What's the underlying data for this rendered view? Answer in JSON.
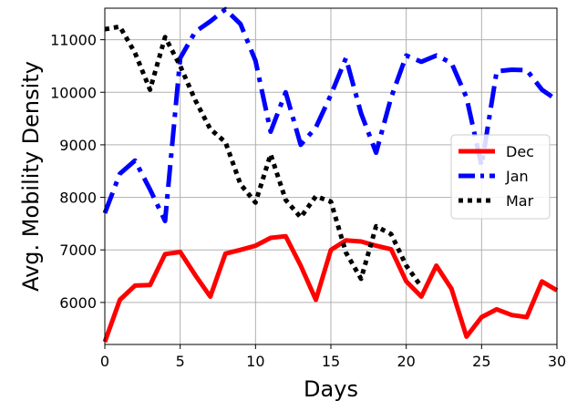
{
  "chart_data": {
    "type": "line",
    "xlabel": "Days",
    "ylabel": "Avg. Mobility Density",
    "xlim": [
      0,
      30
    ],
    "ylim": [
      5200,
      11600
    ],
    "xticks": [
      0,
      5,
      10,
      15,
      20,
      25,
      30
    ],
    "yticks": [
      6000,
      7000,
      8000,
      9000,
      10000,
      11000
    ],
    "grid": true,
    "legend_position": "center-right",
    "x": [
      0,
      1,
      2,
      3,
      4,
      5,
      6,
      7,
      8,
      9,
      10,
      11,
      12,
      13,
      14,
      15,
      16,
      17,
      18,
      19,
      20,
      21,
      22,
      23,
      24,
      25,
      26,
      27,
      28,
      29,
      30
    ],
    "series": [
      {
        "name": "Dec",
        "color": "#ff0000",
        "style": "solid",
        "values": [
          5250,
          6050,
          6320,
          6330,
          6920,
          6960,
          6520,
          6110,
          6930,
          7000,
          7080,
          7230,
          7260,
          6700,
          6050,
          7000,
          7180,
          7160,
          7080,
          7010,
          6400,
          6110,
          6700,
          6260,
          5350,
          5720,
          5870,
          5760,
          5720,
          6400,
          6230
        ]
      },
      {
        "name": "Jan",
        "color": "#0000ff",
        "style": "dashdot",
        "values": [
          7700,
          8450,
          8700,
          8150,
          7550,
          10650,
          11150,
          11350,
          11580,
          11300,
          10600,
          9250,
          10000,
          9000,
          9330,
          9950,
          10650,
          9600,
          8850,
          9900,
          10700,
          10580,
          10700,
          10560,
          9900,
          8600,
          10400,
          10430,
          10420,
          10050,
          9850
        ]
      },
      {
        "name": "Mar",
        "color": "#000000",
        "style": "dotted",
        "values": [
          11200,
          11250,
          10750,
          10050,
          11050,
          10500,
          9850,
          9300,
          9050,
          8250,
          7900,
          8820,
          7950,
          7620,
          8020,
          7920,
          6950,
          6450,
          7450,
          7300,
          6700,
          6300,
          null,
          null,
          null,
          null,
          null,
          null,
          null,
          null,
          null
        ]
      }
    ]
  }
}
